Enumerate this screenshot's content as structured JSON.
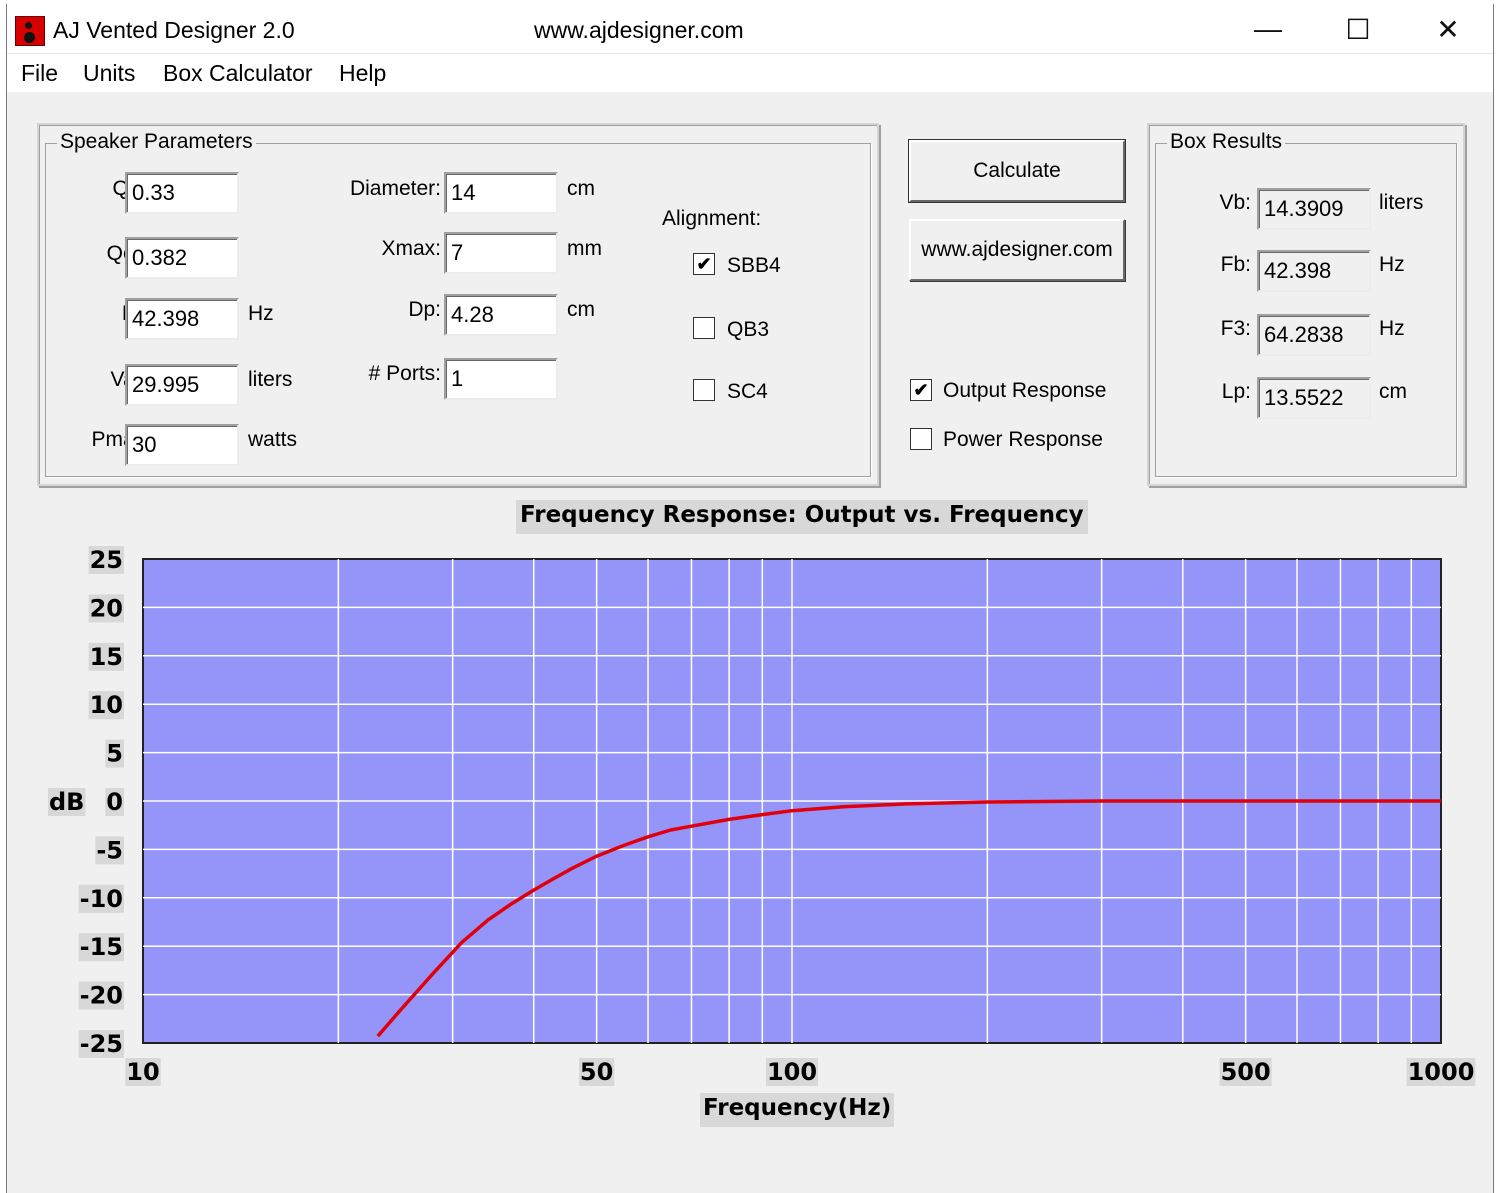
{
  "window": {
    "title": "AJ Vented Designer 2.0",
    "url": "www.ajdesigner.com",
    "controls": {
      "minimize": "—",
      "maximize": "☐",
      "close": "✕"
    }
  },
  "menu": [
    "File",
    "Units",
    "Box Calculator",
    "Help"
  ],
  "speaker": {
    "caption": "Speaker Parameters",
    "qts": {
      "label": "Qts:",
      "value": "0.33"
    },
    "qes": {
      "label": "Qes:",
      "value": "0.382"
    },
    "fs": {
      "label": "Fs:",
      "value": "42.398",
      "unit": "Hz"
    },
    "vas": {
      "label": "Vas:",
      "value": "29.995",
      "unit": "liters"
    },
    "pmax": {
      "label": "Pmax:",
      "value": "30",
      "unit": "watts"
    },
    "diameter": {
      "label": "Diameter:",
      "value": "14",
      "unit": "cm"
    },
    "xmax": {
      "label": "Xmax:",
      "value": "7",
      "unit": "mm"
    },
    "dp": {
      "label": "Dp:",
      "value": "4.28",
      "unit": "cm"
    },
    "ports": {
      "label": "# Ports:",
      "value": "1"
    },
    "alignment": {
      "label": "Alignment:",
      "options": [
        {
          "label": "SBB4",
          "checked": true
        },
        {
          "label": "QB3",
          "checked": false
        },
        {
          "label": "SC4",
          "checked": false
        }
      ]
    }
  },
  "actions": {
    "calculate": "Calculate",
    "website": "www.ajdesigner.com"
  },
  "response": {
    "output": {
      "label": "Output Response",
      "checked": true
    },
    "power": {
      "label": "Power Response",
      "checked": false
    }
  },
  "results": {
    "caption": "Box Results",
    "vb": {
      "label": "Vb:",
      "value": "14.3909",
      "unit": "liters"
    },
    "fb": {
      "label": "Fb:",
      "value": "42.398",
      "unit": "Hz"
    },
    "f3": {
      "label": "F3:",
      "value": "64.2838",
      "unit": "Hz"
    },
    "lp": {
      "label": "Lp:",
      "value": "13.5522",
      "unit": "cm"
    }
  },
  "check_mark": "✔",
  "colors": {
    "plot_bg": "#9595f9",
    "grid": "#ffffff",
    "curve": "#e0000b",
    "label_bg": "#d8d8d8"
  },
  "chart_data": {
    "type": "line",
    "title": "Frequency Response: Output vs. Frequency",
    "xlabel": "Frequency(Hz)",
    "ylabel": "dB",
    "x_scale": "log",
    "xlim": [
      10,
      1000
    ],
    "ylim": [
      -25,
      25
    ],
    "yticks": [
      25,
      20,
      15,
      10,
      5,
      0,
      -5,
      -10,
      -15,
      -20,
      -25
    ],
    "xticks": [
      10,
      50,
      100,
      500,
      1000
    ],
    "grid": true,
    "series": [
      {
        "x": [
          23,
          25,
          28,
          31,
          34,
          37,
          40,
          43,
          46,
          50,
          55,
          60,
          65,
          70,
          80,
          90,
          100,
          120,
          150,
          200,
          300,
          500,
          700,
          1000
        ],
        "y": [
          -24.3,
          -21.5,
          -17.8,
          -14.6,
          -12.3,
          -10.6,
          -9.2,
          -8.0,
          -6.9,
          -5.7,
          -4.6,
          -3.7,
          -3.0,
          -2.6,
          -1.9,
          -1.4,
          -1.0,
          -0.6,
          -0.3,
          -0.1,
          0.0,
          0.0,
          0.0,
          0.0
        ]
      }
    ]
  }
}
